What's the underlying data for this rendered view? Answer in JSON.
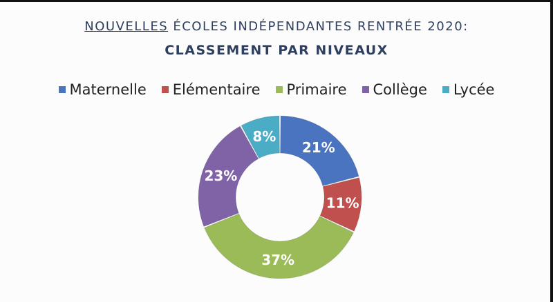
{
  "title": {
    "underlined": "NOUVELLES",
    "rest": " ÉCOLES INDÉPENDANTES RENTRÉE 2020:"
  },
  "subtitle": "CLASSEMENT PAR NIVEAUX",
  "chart_data": {
    "type": "pie",
    "donut": true,
    "title": "NOUVELLES ÉCOLES INDÉPENDANTES RENTRÉE 2020: CLASSEMENT PAR NIVEAUX",
    "legend_position": "top",
    "categories": [
      "Maternelle",
      "Elémentaire",
      "Primaire",
      "Collège",
      "Lycée"
    ],
    "values": [
      21,
      11,
      37,
      23,
      8
    ],
    "data_labels": [
      "21%",
      "11%",
      "37%",
      "23%",
      "8%"
    ],
    "colors": [
      "#4a74bf",
      "#c0504d",
      "#9bbb59",
      "#7f63a6",
      "#4bacc6"
    ]
  }
}
